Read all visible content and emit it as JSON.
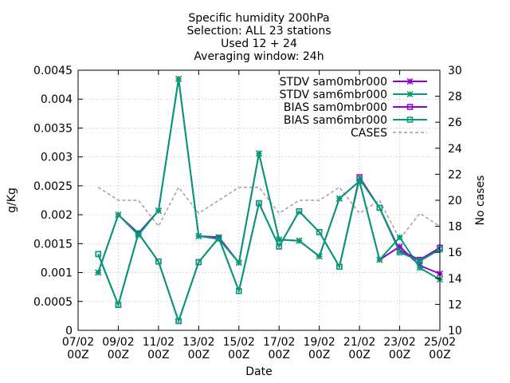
{
  "chart_data": {
    "type": "line",
    "title_lines": [
      "Specific humidity 200hPa",
      "Selection: ALL      23 stations",
      "Used 12 + 24",
      "Averaging window: 24h"
    ],
    "xlabel": "Date",
    "ylabel": "g/Kg",
    "y2label": "No cases",
    "grid": true,
    "legend_position": "top-right",
    "x_tick_labels": [
      {
        "date": "07/02",
        "hour": "00Z"
      },
      {
        "date": "09/02",
        "hour": "00Z"
      },
      {
        "date": "11/02",
        "hour": "00Z"
      },
      {
        "date": "13/02",
        "hour": "00Z"
      },
      {
        "date": "15/02",
        "hour": "00Z"
      },
      {
        "date": "17/02",
        "hour": "00Z"
      },
      {
        "date": "19/02",
        "hour": "00Z"
      },
      {
        "date": "21/02",
        "hour": "00Z"
      },
      {
        "date": "23/02",
        "hour": "00Z"
      },
      {
        "date": "25/02",
        "hour": "00Z"
      }
    ],
    "xlim": [
      "07/02 00Z",
      "25/02 00Z"
    ],
    "x": [
      "08/02 00Z",
      "09/02 00Z",
      "10/02 00Z",
      "11/02 00Z",
      "12/02 00Z",
      "13/02 00Z",
      "14/02 00Z",
      "15/02 00Z",
      "16/02 00Z",
      "17/02 00Z",
      "18/02 00Z",
      "19/02 00Z",
      "20/02 00Z",
      "21/02 00Z",
      "22/02 00Z",
      "23/02 00Z",
      "24/02 00Z",
      "25/02 00Z"
    ],
    "ylim": [
      0,
      0.0045
    ],
    "y_ticks": [
      "0",
      "0.0005",
      "0.001",
      "0.0015",
      "0.002",
      "0.0025",
      "0.003",
      "0.0035",
      "0.004",
      "0.0045"
    ],
    "y2lim": [
      10,
      30
    ],
    "y2_ticks": [
      "10",
      "12",
      "14",
      "16",
      "18",
      "20",
      "22",
      "24",
      "26",
      "28",
      "30"
    ],
    "series": [
      {
        "name": "STDV sam0mbr000",
        "axis": "y1",
        "marker": "star",
        "color": "#9400d3",
        "values": [
          0.001,
          0.002,
          0.00168,
          0.00207,
          0.00435,
          0.00163,
          0.00161,
          0.00117,
          0.00306,
          0.00157,
          0.00155,
          0.00128,
          0.00228,
          0.00258,
          0.00122,
          0.00145,
          0.00112,
          0.00098
        ]
      },
      {
        "name": "STDV sam6mbr000",
        "axis": "y1",
        "marker": "star",
        "color": "#009e73",
        "values": [
          0.001,
          0.002,
          0.00165,
          0.00207,
          0.00435,
          0.00163,
          0.00158,
          0.00117,
          0.00306,
          0.00157,
          0.00155,
          0.00128,
          0.00228,
          0.00258,
          0.00122,
          0.00161,
          0.00108,
          0.00088
        ]
      },
      {
        "name": "BIAS sam0mbr000",
        "axis": "y1",
        "marker": "square",
        "color": "#9400d3",
        "values": [
          0.00132,
          0.00044,
          0.00168,
          0.00119,
          0.00016,
          0.00118,
          0.0016,
          0.00068,
          0.0022,
          0.00145,
          0.00206,
          0.0017,
          0.0011,
          0.00265,
          0.00212,
          0.00138,
          0.00122,
          0.00143
        ]
      },
      {
        "name": "BIAS sam6mbr000",
        "axis": "y1",
        "marker": "square",
        "color": "#009e73",
        "values": [
          0.00132,
          0.00044,
          0.00168,
          0.00119,
          0.00016,
          0.00118,
          0.0016,
          0.00068,
          0.0022,
          0.00145,
          0.00206,
          0.0017,
          0.0011,
          0.00262,
          0.00212,
          0.00135,
          0.0012,
          0.0014
        ]
      },
      {
        "name": "CASES",
        "axis": "y2",
        "marker": "none",
        "dashed": true,
        "color": "#a0a0a0",
        "values": [
          21,
          20,
          20,
          18,
          21,
          19,
          20,
          21,
          21,
          19,
          20,
          20,
          21,
          19,
          20,
          17,
          19,
          18
        ]
      }
    ]
  }
}
